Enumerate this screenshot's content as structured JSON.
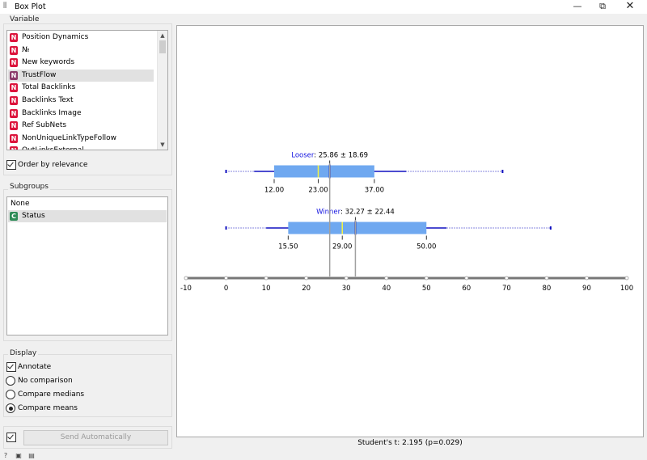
{
  "window": {
    "title": "Box Plot"
  },
  "variable": {
    "group_label": "Variable",
    "items": [
      {
        "label": "Position Dynamics",
        "type": "N",
        "color": "#dc143c"
      },
      {
        "label": "№",
        "type": "N",
        "color": "#dc143c"
      },
      {
        "label": "New keywords",
        "type": "N",
        "color": "#dc143c"
      },
      {
        "label": "TrustFlow",
        "type": "N",
        "color": "#8a3a6a",
        "selected": true
      },
      {
        "label": "Total Backlinks",
        "type": "N",
        "color": "#dc143c"
      },
      {
        "label": "Backlinks Text",
        "type": "N",
        "color": "#dc143c"
      },
      {
        "label": "Backlinks Image",
        "type": "N",
        "color": "#dc143c"
      },
      {
        "label": "Ref SubNets",
        "type": "N",
        "color": "#dc143c"
      },
      {
        "label": "NonUniqueLinkTypeFollow",
        "type": "N",
        "color": "#dc143c"
      },
      {
        "label": "OutLinksExternal",
        "type": "N",
        "color": "#dc143c"
      }
    ],
    "order_by_relevance": {
      "label": "Order by relevance",
      "checked": true
    }
  },
  "subgroups": {
    "group_label": "Subgroups",
    "items": [
      {
        "label": "None"
      },
      {
        "label": "Status",
        "type": "C",
        "color": "#2e8b57",
        "selected": true
      }
    ]
  },
  "display": {
    "group_label": "Display",
    "annotate": {
      "label": "Annotate",
      "checked": true
    },
    "options": [
      {
        "label": "No comparison",
        "selected": false
      },
      {
        "label": "Compare medians",
        "selected": false
      },
      {
        "label": "Compare means",
        "selected": true
      }
    ]
  },
  "send": {
    "label": "Send Automatically",
    "checked": true
  },
  "statistic": "Student's t: 2.195 (p=0.029)",
  "chart_data": {
    "type": "box",
    "axis": {
      "min": -10,
      "max": 100,
      "ticks": [
        -10,
        0,
        10,
        20,
        30,
        40,
        50,
        60,
        70,
        80,
        90,
        100
      ]
    },
    "boxes": [
      {
        "name": "Looser",
        "annotation": "25.86 ± 18.69",
        "mean": 25.86,
        "sd": 18.69,
        "min": 0,
        "whisker_low": 7,
        "q1": 12.0,
        "median": 23.0,
        "q3": 37.0,
        "whisker_high": 45,
        "max": 69,
        "q1_label": "12.00",
        "median_label": "23.00",
        "q3_label": "37.00"
      },
      {
        "name": "Winner",
        "annotation": "32.27 ± 22.44",
        "mean": 32.27,
        "sd": 22.44,
        "min": 0,
        "whisker_low": 10,
        "q1": 15.5,
        "median": 29.0,
        "q3": 50.0,
        "whisker_high": 55,
        "max": 81,
        "q1_label": "15.50",
        "median_label": "29.00",
        "q3_label": "50.00"
      }
    ],
    "colors": {
      "box": "#6fa8f0",
      "mean": "#1010a0",
      "median": "#f5f542",
      "whisker": "#1010c0",
      "axis": "#777777",
      "label": "#1414e0"
    }
  }
}
